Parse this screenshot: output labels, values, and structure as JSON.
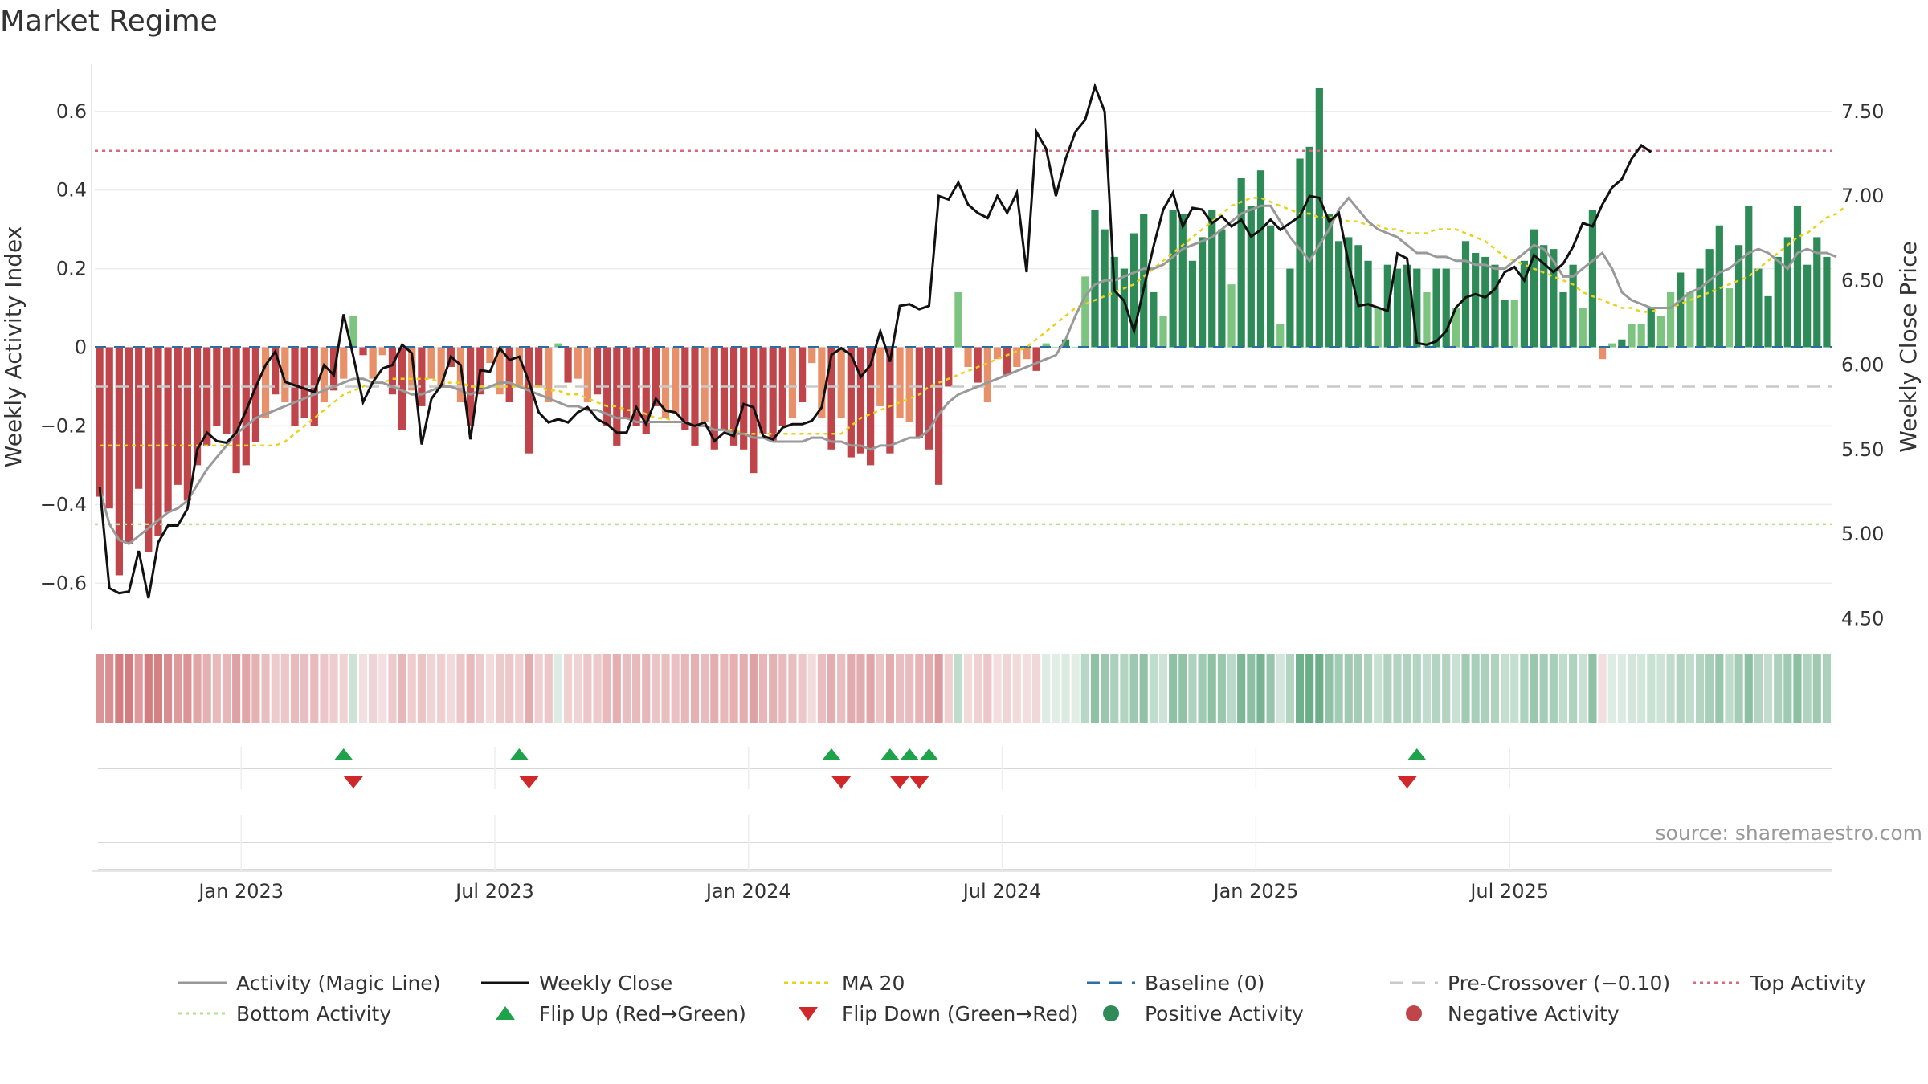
{
  "title": "Market Regime",
  "source": "source: sharemaestro.com",
  "colors": {
    "neg_strong": "#c0454a",
    "neg_light": "#e8906a",
    "pos_strong": "#2e8b57",
    "pos_light": "#7cc47f",
    "activity_line": "#999999",
    "close_line": "#111111",
    "ma20": "#e8d21a",
    "baseline": "#2a6fa0",
    "pre_crossover": "#c9c9c9",
    "top_activity": "#d9687e",
    "bottom_activity": "#b7df8c",
    "flip_up": "#1fa34a",
    "flip_down": "#d0282a"
  },
  "chart_data": {
    "type": "bar",
    "title": "Market Regime",
    "ylabel_left": "Weekly Activity Index",
    "ylabel_right": "Weekly Close Price",
    "left_ylim": [
      -0.72,
      0.72
    ],
    "right_ylim": [
      4.43,
      7.78
    ],
    "left_ticks": [
      {
        "v": 0.6,
        "label": "0.6"
      },
      {
        "v": 0.4,
        "label": "0.4"
      },
      {
        "v": 0.2,
        "label": "0.2"
      },
      {
        "v": 0,
        "label": "0"
      },
      {
        "v": -0.2,
        "label": "−0.2"
      },
      {
        "v": -0.4,
        "label": "−0.4"
      },
      {
        "v": -0.6,
        "label": "−0.6"
      }
    ],
    "right_ticks": [
      {
        "v": 7.5,
        "label": "7.50"
      },
      {
        "v": 7.0,
        "label": "7.00"
      },
      {
        "v": 6.5,
        "label": "6.50"
      },
      {
        "v": 6.0,
        "label": "6.00"
      },
      {
        "v": 5.5,
        "label": "5.50"
      },
      {
        "v": 5.0,
        "label": "5.00"
      },
      {
        "v": 4.5,
        "label": "4.50"
      }
    ],
    "x_ticks": [
      {
        "week": 15,
        "label": "Jan 2023"
      },
      {
        "week": 41,
        "label": "Jul 2023"
      },
      {
        "week": 67,
        "label": "Jan 2024"
      },
      {
        "week": 93,
        "label": "Jul 2024"
      },
      {
        "week": 119,
        "label": "Jan 2025"
      },
      {
        "week": 145,
        "label": "Jul 2025"
      }
    ],
    "reference_lines": {
      "baseline": 0,
      "pre_crossover": -0.1,
      "top_activity": 0.5,
      "bottom_activity": -0.45
    },
    "activity": [
      -0.38,
      -0.41,
      -0.58,
      -0.5,
      -0.36,
      -0.52,
      -0.48,
      -0.42,
      -0.35,
      -0.39,
      -0.3,
      -0.25,
      -0.2,
      -0.22,
      -0.32,
      -0.3,
      -0.24,
      -0.18,
      -0.12,
      -0.14,
      -0.2,
      -0.18,
      -0.2,
      -0.14,
      -0.11,
      -0.08,
      0.08,
      -0.02,
      -0.08,
      -0.02,
      -0.12,
      -0.21,
      -0.11,
      -0.15,
      -0.08,
      -0.1,
      -0.05,
      -0.14,
      -0.2,
      -0.12,
      -0.04,
      -0.12,
      -0.14,
      -0.1,
      -0.27,
      -0.1,
      -0.14,
      0.01,
      -0.09,
      -0.08,
      -0.14,
      -0.12,
      -0.2,
      -0.25,
      -0.18,
      -0.2,
      -0.22,
      -0.15,
      -0.18,
      -0.17,
      -0.21,
      -0.25,
      -0.19,
      -0.26,
      -0.21,
      -0.25,
      -0.26,
      -0.32,
      -0.22,
      -0.24,
      -0.2,
      -0.18,
      -0.14,
      -0.04,
      -0.18,
      -0.26,
      -0.18,
      -0.28,
      -0.27,
      -0.3,
      -0.15,
      -0.27,
      -0.18,
      -0.19,
      -0.23,
      -0.26,
      -0.35,
      -0.1,
      0.14,
      -0.05,
      -0.09,
      -0.14,
      -0.03,
      -0.07,
      -0.05,
      -0.03,
      -0.06,
      0.01,
      0.0,
      0.02,
      0.0,
      0.18,
      0.35,
      0.3,
      0.23,
      0.2,
      0.29,
      0.34,
      0.14,
      0.08,
      0.35,
      0.34,
      0.22,
      0.28,
      0.35,
      0.3,
      0.16,
      0.43,
      0.36,
      0.45,
      0.31,
      0.06,
      0.2,
      0.48,
      0.51,
      0.66,
      0.34,
      0.27,
      0.28,
      0.26,
      0.22,
      0.1,
      0.21,
      0.2,
      0.21,
      0.2,
      0.14,
      0.2,
      0.2,
      0.1,
      0.27,
      0.24,
      0.23,
      0.21,
      0.12,
      0.12,
      0.22,
      0.3,
      0.26,
      0.25,
      0.14,
      0.21,
      0.1,
      0.35,
      -0.03,
      0.01,
      0.02,
      0.06,
      0.06,
      0.1,
      0.08,
      0.14,
      0.19,
      0.14,
      0.2,
      0.25,
      0.31,
      0.15,
      0.26,
      0.36,
      0.2,
      0.13,
      0.23,
      0.28,
      0.36,
      0.21,
      0.28,
      0.23
    ],
    "weekly_close": [
      5.28,
      4.68,
      4.65,
      4.66,
      4.9,
      4.62,
      4.95,
      5.05,
      5.05,
      5.15,
      5.5,
      5.6,
      5.55,
      5.54,
      5.6,
      5.73,
      5.87,
      6.0,
      6.08,
      5.9,
      5.88,
      5.86,
      5.84,
      6.0,
      5.94,
      6.3,
      6.05,
      5.78,
      5.9,
      5.98,
      6.0,
      6.12,
      6.07,
      5.53,
      5.8,
      5.88,
      6.05,
      6.0,
      5.56,
      5.97,
      5.96,
      6.1,
      6.03,
      6.05,
      5.9,
      5.72,
      5.66,
      5.68,
      5.66,
      5.72,
      5.75,
      5.68,
      5.65,
      5.6,
      5.6,
      5.75,
      5.65,
      5.8,
      5.73,
      5.72,
      5.66,
      5.64,
      5.66,
      5.55,
      5.6,
      5.58,
      5.77,
      5.75,
      5.58,
      5.56,
      5.63,
      5.65,
      5.65,
      5.67,
      5.75,
      6.06,
      6.1,
      6.06,
      5.93,
      6.0,
      6.2,
      6.02,
      6.35,
      6.36,
      6.33,
      6.35,
      7.0,
      6.98,
      7.08,
      6.95,
      6.9,
      6.87,
      7.0,
      6.9,
      7.02,
      6.55,
      7.38,
      7.28,
      7.0,
      7.22,
      7.38,
      7.45,
      7.65,
      7.5,
      6.44,
      6.38,
      6.2,
      6.45,
      6.7,
      6.92,
      7.02,
      6.82,
      6.93,
      6.92,
      6.84,
      6.88,
      6.82,
      6.86,
      6.76,
      6.8,
      6.86,
      6.8,
      6.84,
      6.88,
      7.0,
      6.99,
      6.85,
      6.9,
      6.6,
      6.35,
      6.36,
      6.34,
      6.32,
      6.66,
      6.63,
      6.13,
      6.12,
      6.14,
      6.2,
      6.34,
      6.4,
      6.42,
      6.4,
      6.45,
      6.55,
      6.58,
      6.5,
      6.65,
      6.6,
      6.55,
      6.6,
      6.7,
      6.84,
      6.82,
      6.95,
      7.05,
      7.1,
      7.22,
      7.3,
      7.26
    ],
    "magic_line": [
      -0.36,
      -0.45,
      -0.49,
      -0.5,
      -0.48,
      -0.46,
      -0.44,
      -0.42,
      -0.41,
      -0.39,
      -0.35,
      -0.31,
      -0.28,
      -0.25,
      -0.22,
      -0.2,
      -0.18,
      -0.17,
      -0.16,
      -0.15,
      -0.14,
      -0.13,
      -0.12,
      -0.11,
      -0.1,
      -0.09,
      -0.08,
      -0.08,
      -0.09,
      -0.09,
      -0.1,
      -0.11,
      -0.12,
      -0.12,
      -0.11,
      -0.1,
      -0.1,
      -0.11,
      -0.12,
      -0.11,
      -0.1,
      -0.09,
      -0.09,
      -0.1,
      -0.11,
      -0.12,
      -0.13,
      -0.14,
      -0.15,
      -0.15,
      -0.16,
      -0.16,
      -0.17,
      -0.18,
      -0.18,
      -0.19,
      -0.19,
      -0.19,
      -0.19,
      -0.19,
      -0.19,
      -0.2,
      -0.2,
      -0.21,
      -0.21,
      -0.22,
      -0.22,
      -0.23,
      -0.23,
      -0.24,
      -0.24,
      -0.24,
      -0.24,
      -0.23,
      -0.23,
      -0.24,
      -0.24,
      -0.25,
      -0.25,
      -0.26,
      -0.25,
      -0.25,
      -0.24,
      -0.23,
      -0.23,
      -0.21,
      -0.17,
      -0.14,
      -0.12,
      -0.11,
      -0.1,
      -0.09,
      -0.08,
      -0.07,
      -0.06,
      -0.05,
      -0.04,
      -0.03,
      -0.02,
      0.02,
      0.08,
      0.13,
      0.16,
      0.17,
      0.17,
      0.18,
      0.19,
      0.2,
      0.2,
      0.21,
      0.23,
      0.25,
      0.26,
      0.27,
      0.28,
      0.3,
      0.32,
      0.34,
      0.35,
      0.36,
      0.36,
      0.32,
      0.28,
      0.25,
      0.22,
      0.26,
      0.3,
      0.35,
      0.38,
      0.35,
      0.32,
      0.3,
      0.29,
      0.28,
      0.26,
      0.24,
      0.24,
      0.23,
      0.23,
      0.22,
      0.22,
      0.21,
      0.21,
      0.2,
      0.2,
      0.22,
      0.24,
      0.26,
      0.25,
      0.22,
      0.18,
      0.18,
      0.2,
      0.22,
      0.24,
      0.2,
      0.14,
      0.12,
      0.11,
      0.1,
      0.1,
      0.1,
      0.12,
      0.14,
      0.15,
      0.17,
      0.19,
      0.2,
      0.22,
      0.24,
      0.25,
      0.24,
      0.22,
      0.2,
      0.24,
      0.25,
      0.24,
      0.24,
      0.23
    ],
    "ma20": [
      -0.25,
      -0.25,
      -0.25,
      -0.25,
      -0.25,
      -0.25,
      -0.25,
      -0.25,
      -0.25,
      -0.25,
      -0.25,
      -0.25,
      -0.25,
      -0.25,
      -0.25,
      -0.25,
      -0.25,
      -0.25,
      -0.25,
      -0.24,
      -0.22,
      -0.2,
      -0.18,
      -0.16,
      -0.14,
      -0.12,
      -0.11,
      -0.1,
      -0.09,
      -0.09,
      -0.08,
      -0.08,
      -0.08,
      -0.08,
      -0.08,
      -0.09,
      -0.09,
      -0.09,
      -0.1,
      -0.1,
      -0.1,
      -0.1,
      -0.1,
      -0.1,
      -0.1,
      -0.1,
      -0.11,
      -0.11,
      -0.12,
      -0.12,
      -0.13,
      -0.14,
      -0.15,
      -0.15,
      -0.16,
      -0.16,
      -0.17,
      -0.18,
      -0.18,
      -0.19,
      -0.19,
      -0.2,
      -0.2,
      -0.21,
      -0.21,
      -0.21,
      -0.22,
      -0.22,
      -0.22,
      -0.22,
      -0.22,
      -0.22,
      -0.22,
      -0.22,
      -0.22,
      -0.22,
      -0.22,
      -0.2,
      -0.18,
      -0.17,
      -0.16,
      -0.15,
      -0.14,
      -0.13,
      -0.12,
      -0.1,
      -0.09,
      -0.08,
      -0.07,
      -0.06,
      -0.05,
      -0.04,
      -0.03,
      -0.02,
      -0.01,
      0.0,
      0.02,
      0.04,
      0.06,
      0.08,
      0.1,
      0.11,
      0.12,
      0.13,
      0.14,
      0.15,
      0.16,
      0.18,
      0.2,
      0.22,
      0.24,
      0.26,
      0.28,
      0.3,
      0.32,
      0.34,
      0.36,
      0.37,
      0.38,
      0.38,
      0.37,
      0.36,
      0.35,
      0.34,
      0.34,
      0.33,
      0.33,
      0.33,
      0.32,
      0.32,
      0.31,
      0.31,
      0.3,
      0.3,
      0.29,
      0.29,
      0.29,
      0.3,
      0.3,
      0.3,
      0.29,
      0.28,
      0.27,
      0.25,
      0.23,
      0.22,
      0.21,
      0.2,
      0.19,
      0.18,
      0.17,
      0.16,
      0.14,
      0.13,
      0.12,
      0.11,
      0.1,
      0.1,
      0.09,
      0.09,
      0.1,
      0.1,
      0.11,
      0.12,
      0.13,
      0.14,
      0.15,
      0.16,
      0.17,
      0.18,
      0.2,
      0.22,
      0.24,
      0.26,
      0.28,
      0.29,
      0.31,
      0.33,
      0.34,
      0.36
    ],
    "flip_up_weeks": [
      25.5,
      43.5,
      75.5,
      81.5,
      83.5,
      85.5,
      135.5
    ],
    "flip_down_weeks": [
      26.5,
      44.5,
      76.5,
      82.5,
      84.5,
      134.5
    ],
    "legend": [
      {
        "label": "Activity (Magic Line)",
        "kind": "line-gray"
      },
      {
        "label": "Weekly Close",
        "kind": "line-black"
      },
      {
        "label": "MA 20",
        "kind": "dotted-yellow"
      },
      {
        "label": "Baseline (0)",
        "kind": "dash-blue"
      },
      {
        "label": "Pre-Crossover (−0.10)",
        "kind": "dash-gray"
      },
      {
        "label": "Top Activity",
        "kind": "dotted-red"
      },
      {
        "label": "Bottom Activity",
        "kind": "dotted-green"
      },
      {
        "label": "Flip Up (Red→Green)",
        "kind": "tri-up"
      },
      {
        "label": "Flip Down (Green→Red)",
        "kind": "tri-down"
      },
      {
        "label": "Positive Activity",
        "kind": "dot-green"
      },
      {
        "label": "Negative Activity",
        "kind": "dot-red"
      }
    ]
  }
}
